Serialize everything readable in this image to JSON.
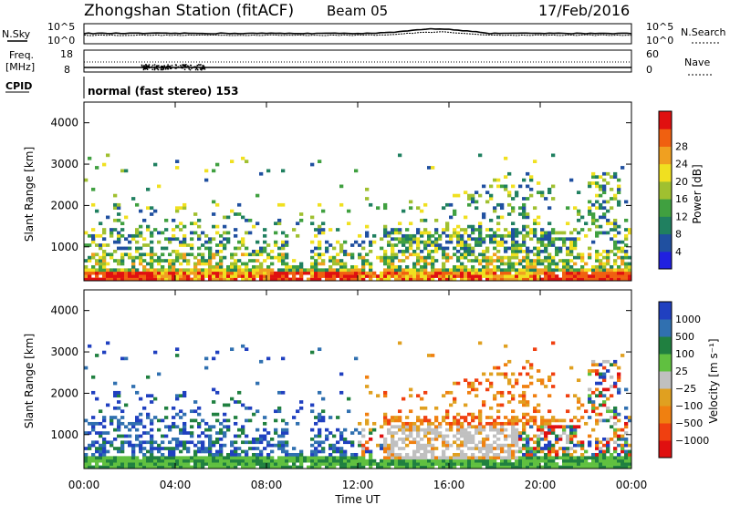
{
  "header": {
    "station": "Zhongshan Station (fitACF)",
    "beam": "Beam 05",
    "date": "17/Feb/2016"
  },
  "top_panels": {
    "nsky_label": "N.Sky",
    "nsky_ticks": [
      "10^5",
      "10^0"
    ],
    "nsearch_label": "N.Search",
    "nsearch_ticks": [
      "10^5",
      "10^0"
    ],
    "freq_label": "Freq.",
    "freq_unit": "[MHz]",
    "freq_ticks": [
      "18",
      "8"
    ],
    "nave_label": "Nave",
    "nave_ticks": [
      "60",
      "0"
    ],
    "cpid_label": "CPID",
    "cpid_text": "normal (fast stereo) 153"
  },
  "colors": {
    "power_scale": [
      "#2020e0",
      "#2050a0",
      "#208060",
      "#40a040",
      "#a0c030",
      "#f0e020",
      "#f0a020",
      "#f06010",
      "#e01010"
    ],
    "velocity_scale": [
      "#2040c0",
      "#3070b0",
      "#208040",
      "#60c040",
      "#c0c0c0",
      "#e0a020",
      "#f08010",
      "#f04010",
      "#e01010"
    ]
  },
  "chart_data": [
    {
      "type": "heatmap",
      "name": "power",
      "ylabel": "Slant Range [km]",
      "yticks": [
        "1000",
        "2000",
        "3000",
        "4000"
      ],
      "ylim": [
        180,
        4500
      ],
      "xlim": [
        0,
        24
      ],
      "colorbar_label": "Power [dB]",
      "colorbar_ticks": [
        "4",
        "8",
        "12",
        "16",
        "20",
        "24",
        "28"
      ],
      "colorbar_range": [
        0,
        30
      ]
    },
    {
      "type": "heatmap",
      "name": "velocity",
      "ylabel": "Slant Range [km]",
      "yticks": [
        "1000",
        "2000",
        "3000",
        "4000"
      ],
      "ylim": [
        180,
        4500
      ],
      "xlim": [
        0,
        24
      ],
      "colorbar_label": "Velocity [m s⁻¹]",
      "colorbar_ticks": [
        "1000",
        "500",
        "100",
        "25",
        "−25",
        "−100",
        "−500",
        "−1000"
      ],
      "xticks": [
        "00:00",
        "04:00",
        "08:00",
        "12:00",
        "16:00",
        "20:00",
        "00:00"
      ],
      "xlabel": "Time UT"
    }
  ]
}
